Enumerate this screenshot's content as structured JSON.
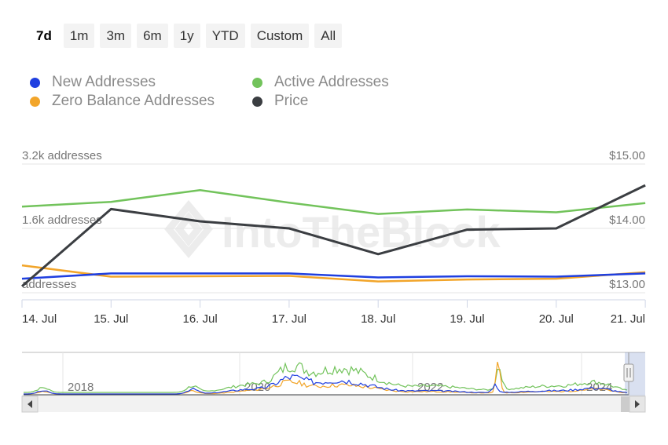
{
  "range_selector": {
    "buttons": [
      "7d",
      "1m",
      "3m",
      "6m",
      "1y",
      "YTD",
      "Custom",
      "All"
    ],
    "active": "7d"
  },
  "watermark": "IntoTheBlock",
  "colors": {
    "new_addresses": "#1f3fe0",
    "active_addresses": "#72c35b",
    "zero_balance_addresses": "#f2a52a",
    "price": "#3b3e42",
    "grid": "#e6e6e6",
    "axis_text": "#777777"
  },
  "chart_data": {
    "type": "line",
    "x": [
      "14. Jul",
      "15. Jul",
      "16. Jul",
      "17. Jul",
      "18. Jul",
      "19. Jul",
      "20. Jul",
      "21. Jul"
    ],
    "left_axis": {
      "ticks": [
        {
          "value": 0,
          "label": "addresses"
        },
        {
          "value": 1600,
          "label": "1.6k addresses"
        },
        {
          "value": 3200,
          "label": "3.2k addresses"
        }
      ],
      "ylim": [
        0,
        3200
      ]
    },
    "right_axis": {
      "ticks": [
        {
          "value": 13,
          "label": "$13.00"
        },
        {
          "value": 14,
          "label": "$14.00"
        },
        {
          "value": 15,
          "label": "$15.00"
        }
      ],
      "ylim": [
        13,
        15
      ]
    },
    "grid": true,
    "legend_position": "top-left",
    "series": [
      {
        "name": "New Addresses",
        "key": "new_addresses",
        "axis": "left",
        "values": [
          350,
          480,
          480,
          480,
          380,
          410,
          400,
          480
        ]
      },
      {
        "name": "Active Addresses",
        "key": "active_addresses",
        "axis": "left",
        "values": [
          2140,
          2260,
          2550,
          2240,
          1960,
          2070,
          2000,
          2230
        ]
      },
      {
        "name": "Zero Balance Addresses",
        "key": "zero_balance_addresses",
        "axis": "left",
        "values": [
          680,
          400,
          410,
          420,
          280,
          330,
          350,
          510
        ]
      },
      {
        "name": "Price",
        "key": "price",
        "axis": "right",
        "values": [
          13.1,
          14.3,
          14.11,
          14.0,
          13.6,
          13.98,
          14.0,
          14.67
        ]
      }
    ],
    "navigator": {
      "year_labels": [
        "2018",
        "2020",
        "2022",
        "2024"
      ]
    }
  }
}
